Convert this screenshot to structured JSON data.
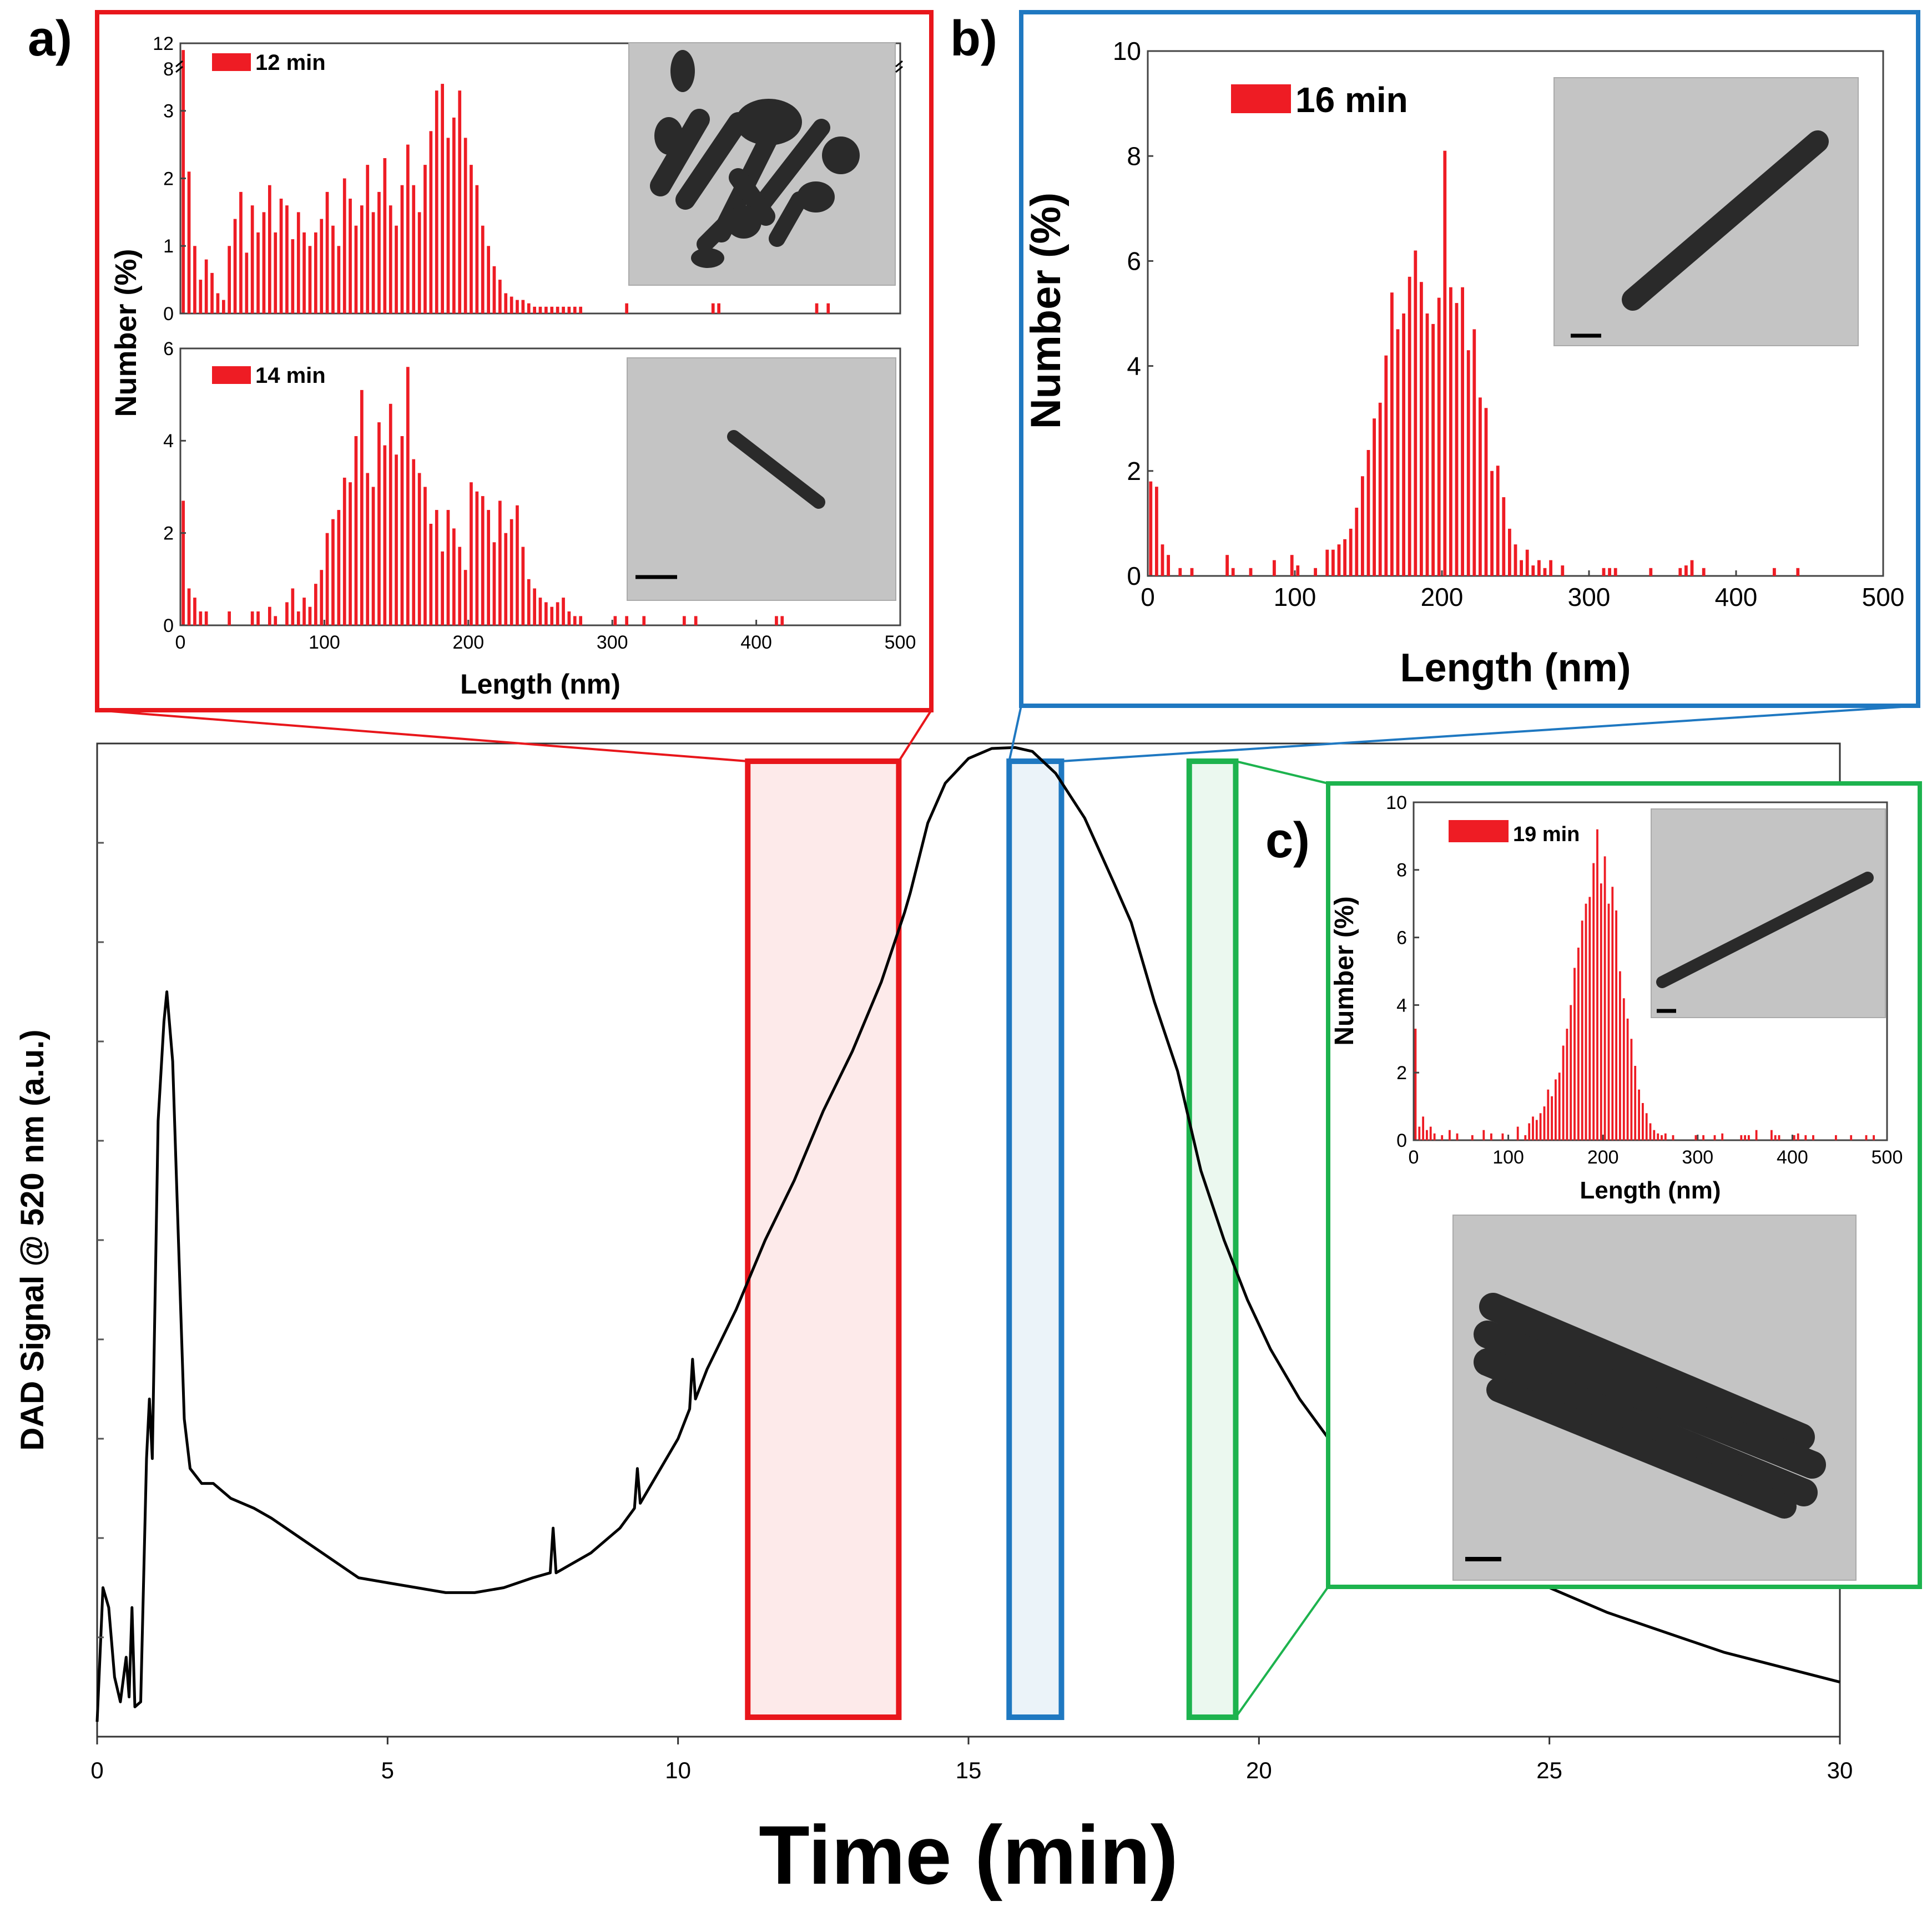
{
  "colors": {
    "panel_a": "#e8161b",
    "panel_b": "#1f78c1",
    "panel_c": "#1db34e",
    "bar": "#ee1c24",
    "line": "#000000",
    "tem_bg": "#c4c4c4",
    "rod": "#2a2a2a"
  },
  "chart_data": [
    {
      "id": "main",
      "type": "line",
      "title": "",
      "xlabel": "Time (min)",
      "ylabel": "DAD Signal @ 520 nm (a.u.)",
      "xlim": [
        0,
        30
      ],
      "ylim": [
        0,
        10
      ],
      "xticks": [
        0,
        5,
        10,
        15,
        20,
        25,
        30
      ],
      "grid": false,
      "series": [
        {
          "name": "DAD signal",
          "points": [
            [
              0.0,
              0.15
            ],
            [
              0.1,
              1.5
            ],
            [
              0.2,
              1.3
            ],
            [
              0.3,
              0.6
            ],
            [
              0.4,
              0.35
            ],
            [
              0.5,
              0.8
            ],
            [
              0.55,
              0.4
            ],
            [
              0.6,
              1.3
            ],
            [
              0.65,
              0.3
            ],
            [
              0.75,
              0.35
            ],
            [
              0.85,
              2.8
            ],
            [
              0.9,
              3.4
            ],
            [
              0.95,
              2.8
            ],
            [
              1.05,
              6.2
            ],
            [
              1.15,
              7.2
            ],
            [
              1.2,
              7.5
            ],
            [
              1.3,
              6.8
            ],
            [
              1.4,
              5.0
            ],
            [
              1.5,
              3.2
            ],
            [
              1.6,
              2.7
            ],
            [
              1.8,
              2.55
            ],
            [
              2.0,
              2.55
            ],
            [
              2.3,
              2.4
            ],
            [
              2.7,
              2.3
            ],
            [
              3.0,
              2.2
            ],
            [
              3.5,
              2.0
            ],
            [
              4.0,
              1.8
            ],
            [
              4.5,
              1.6
            ],
            [
              5.0,
              1.55
            ],
            [
              5.5,
              1.5
            ],
            [
              6.0,
              1.45
            ],
            [
              6.5,
              1.45
            ],
            [
              7.0,
              1.5
            ],
            [
              7.5,
              1.6
            ],
            [
              7.8,
              1.65
            ],
            [
              7.85,
              2.1
            ],
            [
              7.9,
              1.65
            ],
            [
              8.5,
              1.85
            ],
            [
              9.0,
              2.1
            ],
            [
              9.25,
              2.3
            ],
            [
              9.3,
              2.7
            ],
            [
              9.35,
              2.35
            ],
            [
              9.5,
              2.5
            ],
            [
              10.0,
              3.0
            ],
            [
              10.2,
              3.3
            ],
            [
              10.25,
              3.8
            ],
            [
              10.3,
              3.4
            ],
            [
              10.5,
              3.7
            ],
            [
              11.0,
              4.3
            ],
            [
              11.5,
              5.0
            ],
            [
              12.0,
              5.6
            ],
            [
              12.5,
              6.3
            ],
            [
              13.0,
              6.9
            ],
            [
              13.5,
              7.6
            ],
            [
              13.9,
              8.3
            ],
            [
              14.0,
              8.5
            ],
            [
              14.3,
              9.2
            ],
            [
              14.6,
              9.6
            ],
            [
              15.0,
              9.85
            ],
            [
              15.4,
              9.95
            ],
            [
              15.8,
              9.96
            ],
            [
              16.1,
              9.92
            ],
            [
              16.5,
              9.7
            ],
            [
              17.0,
              9.25
            ],
            [
              17.5,
              8.6
            ],
            [
              17.8,
              8.2
            ],
            [
              18.2,
              7.4
            ],
            [
              18.6,
              6.7
            ],
            [
              18.8,
              6.2
            ],
            [
              19.0,
              5.7
            ],
            [
              19.4,
              5.0
            ],
            [
              19.8,
              4.4
            ],
            [
              20.2,
              3.9
            ],
            [
              20.7,
              3.4
            ],
            [
              21.2,
              3.0
            ],
            [
              21.8,
              2.6
            ],
            [
              22.5,
              2.3
            ],
            [
              23.0,
              2.05
            ],
            [
              24.0,
              1.75
            ],
            [
              25.0,
              1.5
            ],
            [
              26.0,
              1.25
            ],
            [
              27.0,
              1.05
            ],
            [
              28.0,
              0.85
            ],
            [
              29.0,
              0.7
            ],
            [
              30.0,
              0.55
            ]
          ]
        }
      ],
      "highlights": [
        {
          "label": "a",
          "x_start": 11.2,
          "x_end": 13.8,
          "color": "#e8161b"
        },
        {
          "label": "b",
          "x_start": 15.7,
          "x_end": 16.6,
          "color": "#1f78c1"
        },
        {
          "label": "c",
          "x_start": 18.8,
          "x_end": 19.6,
          "color": "#1db34e"
        }
      ]
    },
    {
      "id": "a12",
      "type": "bar",
      "panel": "a)",
      "legend": "12 min",
      "xlabel": "",
      "ylabel": "Number (%)",
      "xlim": [
        0,
        500
      ],
      "ylim": [
        0,
        4
      ],
      "yticks": [
        0,
        1,
        2,
        3
      ],
      "ytick_labels": [
        "0",
        "1",
        "2",
        "3"
      ],
      "broken_axis_labels": [
        "12",
        "8"
      ],
      "bin_width": 4,
      "bins_start": [
        0,
        4,
        8,
        12,
        16,
        20,
        24,
        28,
        32,
        36,
        40,
        44,
        48,
        52,
        56,
        60,
        64,
        68,
        72,
        76,
        80,
        84,
        88,
        92,
        96,
        100,
        104,
        108,
        112,
        116,
        120,
        124,
        128,
        132,
        136,
        140,
        144,
        148,
        152,
        156,
        160,
        164,
        168,
        172,
        176,
        180,
        184,
        188,
        192,
        196,
        200,
        204,
        208,
        212,
        216,
        220,
        224,
        228,
        232,
        236,
        240,
        244,
        248,
        252,
        256,
        260,
        264,
        268,
        272,
        276,
        308,
        368,
        372,
        440,
        448
      ],
      "values": [
        3.9,
        2.1,
        1.0,
        0.5,
        0.8,
        0.6,
        0.3,
        0.2,
        1.0,
        1.4,
        1.8,
        0.9,
        1.6,
        1.2,
        1.5,
        1.9,
        1.2,
        1.7,
        1.6,
        1.1,
        1.5,
        1.2,
        1.0,
        1.2,
        1.4,
        1.8,
        1.3,
        1.0,
        2.0,
        1.7,
        1.3,
        1.6,
        2.2,
        1.5,
        1.8,
        2.3,
        1.6,
        1.3,
        1.9,
        2.5,
        1.9,
        1.5,
        2.2,
        2.7,
        3.3,
        3.4,
        2.6,
        2.9,
        3.3,
        2.6,
        2.2,
        1.9,
        1.3,
        1.0,
        0.7,
        0.5,
        0.3,
        0.25,
        0.2,
        0.2,
        0.15,
        0.1,
        0.1,
        0.1,
        0.1,
        0.1,
        0.1,
        0.1,
        0.1,
        0.1,
        0.15,
        0.15,
        0.15,
        0.15,
        0.15
      ]
    },
    {
      "id": "a14",
      "type": "bar",
      "panel": "a)",
      "legend": "14 min",
      "xlabel": "Length (nm)",
      "ylabel": "Number (%)",
      "xlim": [
        0,
        500
      ],
      "ylim": [
        0,
        6
      ],
      "xticks": [
        0,
        100,
        200,
        300,
        400,
        500
      ],
      "yticks": [
        0,
        2,
        4,
        6
      ],
      "bin_width": 4,
      "bins_start": [
        0,
        4,
        8,
        12,
        16,
        32,
        48,
        52,
        60,
        64,
        72,
        76,
        80,
        84,
        88,
        92,
        96,
        100,
        104,
        108,
        112,
        116,
        120,
        124,
        128,
        132,
        136,
        140,
        144,
        148,
        152,
        156,
        160,
        164,
        168,
        172,
        176,
        180,
        184,
        188,
        192,
        196,
        200,
        204,
        208,
        212,
        216,
        220,
        224,
        228,
        232,
        236,
        240,
        244,
        248,
        252,
        256,
        260,
        264,
        268,
        272,
        276,
        300,
        308,
        320,
        348,
        356,
        412,
        416
      ],
      "values": [
        2.7,
        0.8,
        0.6,
        0.3,
        0.3,
        0.3,
        0.3,
        0.3,
        0.4,
        0.2,
        0.5,
        0.8,
        0.3,
        0.6,
        0.4,
        0.9,
        1.2,
        2.0,
        2.3,
        2.5,
        3.2,
        3.1,
        4.1,
        5.1,
        3.3,
        3.0,
        4.4,
        3.9,
        4.8,
        3.7,
        4.1,
        5.6,
        3.6,
        3.3,
        3.0,
        2.2,
        2.5,
        1.6,
        2.5,
        2.1,
        1.7,
        1.2,
        3.1,
        2.9,
        2.8,
        2.5,
        1.8,
        2.7,
        2.0,
        2.3,
        2.6,
        1.7,
        1.0,
        0.8,
        0.6,
        0.5,
        0.4,
        0.5,
        0.6,
        0.3,
        0.2,
        0.2,
        0.2,
        0.2,
        0.2,
        0.2,
        0.2,
        0.2,
        0.2
      ]
    },
    {
      "id": "b16",
      "type": "bar",
      "panel": "b)",
      "legend": "16 min",
      "xlabel": "Length (nm)",
      "ylabel": "Number (%)",
      "xlim": [
        0,
        500
      ],
      "ylim": [
        0,
        10
      ],
      "xticks": [
        0,
        100,
        200,
        300,
        400,
        500
      ],
      "yticks": [
        0,
        2,
        4,
        6,
        8,
        10
      ],
      "bin_width": 4,
      "bins_start": [
        0,
        4,
        8,
        12,
        20,
        28,
        52,
        56,
        68,
        84,
        96,
        100,
        112,
        120,
        124,
        128,
        132,
        136,
        140,
        144,
        148,
        152,
        156,
        160,
        164,
        168,
        172,
        176,
        180,
        184,
        188,
        192,
        196,
        200,
        204,
        208,
        212,
        216,
        220,
        224,
        228,
        232,
        236,
        240,
        244,
        248,
        252,
        256,
        260,
        264,
        268,
        272,
        280,
        308,
        312,
        316,
        340,
        360,
        364,
        368,
        376,
        424,
        440
      ],
      "values": [
        1.8,
        1.7,
        0.6,
        0.4,
        0.15,
        0.15,
        0.4,
        0.15,
        0.15,
        0.3,
        0.4,
        0.2,
        0.15,
        0.5,
        0.5,
        0.6,
        0.7,
        0.9,
        1.3,
        1.9,
        2.4,
        3.0,
        3.3,
        4.2,
        5.4,
        4.7,
        5.0,
        5.7,
        6.2,
        5.6,
        5.0,
        4.8,
        5.3,
        8.1,
        5.5,
        5.2,
        5.5,
        4.3,
        4.7,
        3.4,
        3.2,
        2.0,
        2.1,
        1.5,
        0.9,
        0.6,
        0.3,
        0.5,
        0.2,
        0.3,
        0.15,
        0.3,
        0.2,
        0.15,
        0.15,
        0.15,
        0.15,
        0.15,
        0.2,
        0.3,
        0.15,
        0.15,
        0.15
      ]
    },
    {
      "id": "c19",
      "type": "bar",
      "panel": "c)",
      "legend": "19 min",
      "xlabel": "Length (nm)",
      "ylabel": "Number (%)",
      "xlim": [
        0,
        500
      ],
      "ylim": [
        0,
        10
      ],
      "xticks": [
        0,
        100,
        200,
        300,
        400,
        500
      ],
      "yticks": [
        0,
        2,
        4,
        6,
        8,
        10
      ],
      "bin_width": 4,
      "bins_start": [
        0,
        4,
        8,
        12,
        16,
        20,
        28,
        36,
        44,
        60,
        72,
        80,
        92,
        108,
        116,
        120,
        124,
        128,
        132,
        136,
        140,
        144,
        148,
        152,
        156,
        160,
        164,
        168,
        172,
        176,
        180,
        184,
        188,
        192,
        196,
        200,
        204,
        208,
        212,
        216,
        220,
        224,
        228,
        232,
        236,
        240,
        244,
        248,
        252,
        256,
        260,
        264,
        272,
        296,
        304,
        316,
        324,
        344,
        348,
        352,
        360,
        376,
        380,
        384,
        400,
        404,
        412,
        420,
        444,
        460,
        476,
        484
      ],
      "values": [
        3.3,
        0.4,
        0.7,
        0.3,
        0.4,
        0.2,
        0.15,
        0.3,
        0.2,
        0.15,
        0.3,
        0.2,
        0.2,
        0.4,
        0.15,
        0.5,
        0.7,
        0.6,
        0.8,
        1.0,
        1.5,
        1.3,
        1.8,
        2.0,
        2.8,
        3.3,
        4.0,
        5.1,
        5.7,
        6.5,
        7.0,
        7.2,
        8.2,
        9.2,
        7.6,
        8.4,
        7.0,
        7.5,
        6.8,
        5.0,
        4.2,
        3.6,
        3.0,
        2.2,
        1.5,
        1.1,
        0.8,
        0.5,
        0.3,
        0.2,
        0.15,
        0.2,
        0.15,
        0.15,
        0.15,
        0.15,
        0.2,
        0.15,
        0.15,
        0.15,
        0.3,
        0.3,
        0.15,
        0.15,
        0.15,
        0.2,
        0.15,
        0.15,
        0.15,
        0.15,
        0.15,
        0.15
      ]
    }
  ]
}
